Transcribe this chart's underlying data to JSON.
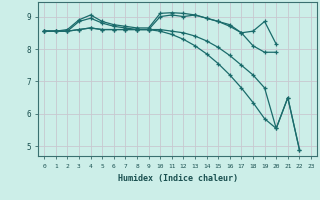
{
  "xlabel": "Humidex (Indice chaleur)",
  "bg_color": "#cceee8",
  "grid_color_h": "#c8c8d0",
  "grid_color_v": "#c8c8d0",
  "line_color": "#1a6b6b",
  "x_min": -0.5,
  "x_max": 23.5,
  "y_min": 4.7,
  "y_max": 9.45,
  "yticks": [
    5,
    6,
    7,
    8,
    9
  ],
  "xticks": [
    0,
    1,
    2,
    3,
    4,
    5,
    6,
    7,
    8,
    9,
    10,
    11,
    12,
    13,
    14,
    15,
    16,
    17,
    18,
    19,
    20,
    21,
    22,
    23
  ],
  "lines": [
    {
      "x": [
        0,
        1,
        2,
        3,
        4,
        5,
        6,
        7,
        8,
        9,
        10,
        11,
        12,
        13,
        14,
        15,
        16,
        17,
        18,
        19,
        20
      ],
      "y": [
        8.55,
        8.55,
        8.6,
        8.9,
        9.05,
        8.85,
        8.75,
        8.7,
        8.65,
        8.65,
        9.1,
        9.12,
        9.1,
        9.05,
        8.95,
        8.85,
        8.7,
        8.5,
        8.55,
        8.85,
        8.15
      ]
    },
    {
      "x": [
        0,
        1,
        2,
        3,
        4,
        5,
        6,
        7,
        8,
        9,
        10,
        11,
        12,
        13,
        14,
        15,
        16,
        17,
        18,
        19,
        20
      ],
      "y": [
        8.55,
        8.55,
        8.55,
        8.85,
        8.95,
        8.8,
        8.7,
        8.65,
        8.6,
        8.6,
        9.0,
        9.05,
        9.0,
        9.05,
        8.95,
        8.85,
        8.75,
        8.5,
        8.1,
        7.9,
        7.9
      ]
    },
    {
      "x": [
        0,
        1,
        2,
        3,
        4,
        5,
        6,
        7,
        8,
        9,
        10,
        11,
        12,
        13,
        14,
        15,
        16,
        17,
        18,
        19,
        20,
        21,
        22
      ],
      "y": [
        8.55,
        8.55,
        8.55,
        8.6,
        8.65,
        8.6,
        8.6,
        8.6,
        8.6,
        8.6,
        8.6,
        8.55,
        8.5,
        8.4,
        8.25,
        8.05,
        7.8,
        7.5,
        7.2,
        6.8,
        5.55,
        6.5,
        4.9
      ]
    },
    {
      "x": [
        0,
        1,
        2,
        3,
        4,
        5,
        6,
        7,
        8,
        9,
        10,
        11,
        12,
        13,
        14,
        15,
        16,
        17,
        18,
        19,
        20,
        21,
        22
      ],
      "y": [
        8.55,
        8.55,
        8.55,
        8.6,
        8.65,
        8.6,
        8.6,
        8.6,
        8.6,
        8.6,
        8.55,
        8.45,
        8.3,
        8.1,
        7.85,
        7.55,
        7.2,
        6.8,
        6.35,
        5.85,
        5.55,
        6.5,
        4.9
      ]
    }
  ]
}
